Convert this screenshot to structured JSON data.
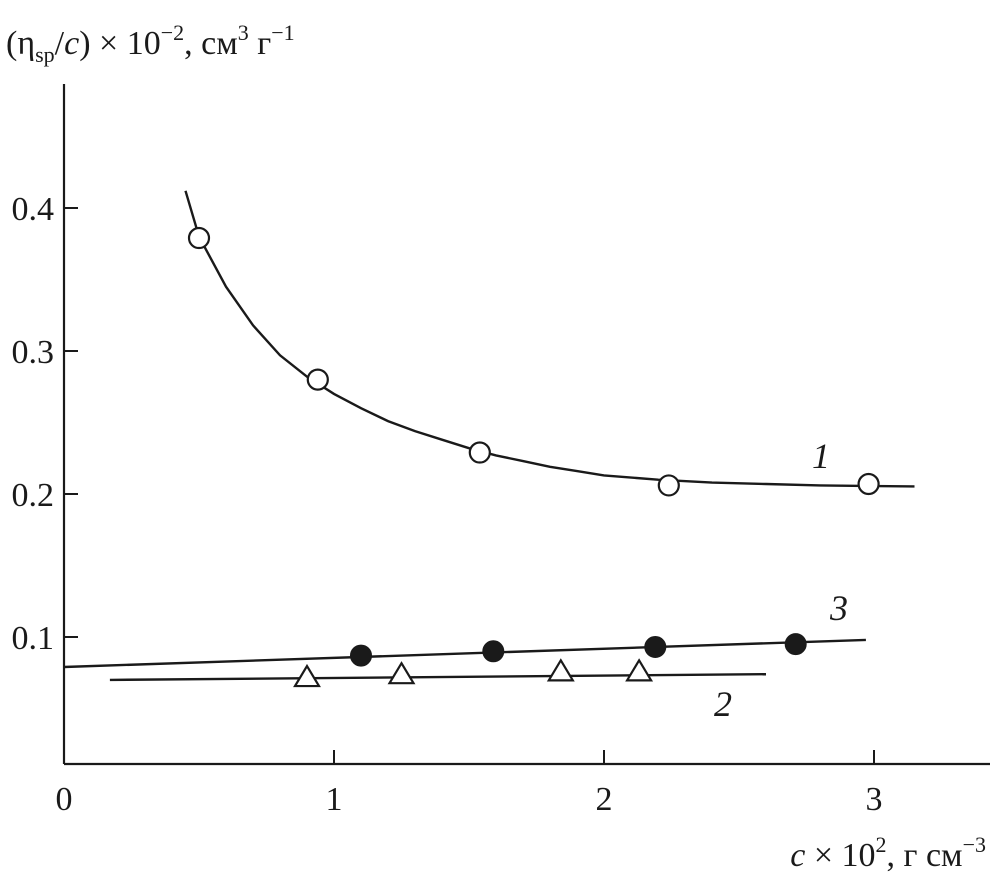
{
  "chart_data": {
    "type": "scatter",
    "ylabel": {
      "open": "(",
      "eta": "η",
      "sub": "sp",
      "slash": "/",
      "c": "c",
      "rest": ") × 10",
      "exp": "−2",
      "units": ", см",
      "units_exp": "3",
      "units2": " г",
      "units2_exp": "−1"
    },
    "xlabel": {
      "c": "c",
      "rest": " × 10",
      "exp": "2",
      "units": ", г см",
      "units_exp": "−3"
    },
    "xlim": [
      0,
      3.45
    ],
    "ylim": [
      0,
      0.48
    ],
    "xticks": [
      0,
      1,
      2,
      3
    ],
    "xtick_labels": [
      "0",
      "1",
      "2",
      "3"
    ],
    "yticks": [
      0.1,
      0.2,
      0.3,
      0.4
    ],
    "ytick_labels": [
      "0.1",
      "0.2",
      "0.3",
      "0.4"
    ],
    "grid": false,
    "series": [
      {
        "name": "1",
        "marker": "open-circle",
        "points": [
          {
            "x": 0.5,
            "y": 0.379
          },
          {
            "x": 0.94,
            "y": 0.28
          },
          {
            "x": 1.54,
            "y": 0.229
          },
          {
            "x": 2.24,
            "y": 0.206
          },
          {
            "x": 2.98,
            "y": 0.207
          }
        ],
        "curve": [
          [
            0.45,
            0.412
          ],
          [
            0.5,
            0.38
          ],
          [
            0.6,
            0.345
          ],
          [
            0.7,
            0.318
          ],
          [
            0.8,
            0.297
          ],
          [
            0.9,
            0.282
          ],
          [
            1.0,
            0.27
          ],
          [
            1.1,
            0.26
          ],
          [
            1.2,
            0.251
          ],
          [
            1.3,
            0.244
          ],
          [
            1.4,
            0.238
          ],
          [
            1.5,
            0.232
          ],
          [
            1.6,
            0.227
          ],
          [
            1.7,
            0.223
          ],
          [
            1.8,
            0.219
          ],
          [
            1.9,
            0.216
          ],
          [
            2.0,
            0.213
          ],
          [
            2.2,
            0.21
          ],
          [
            2.4,
            0.208
          ],
          [
            2.6,
            0.207
          ],
          [
            2.8,
            0.206
          ],
          [
            3.0,
            0.2055
          ],
          [
            3.15,
            0.2053
          ]
        ]
      },
      {
        "name": "2",
        "marker": "open-triangle",
        "points": [
          {
            "x": 0.9,
            "y": 0.071
          },
          {
            "x": 1.25,
            "y": 0.073
          },
          {
            "x": 1.84,
            "y": 0.075
          },
          {
            "x": 2.13,
            "y": 0.075
          }
        ],
        "curve": [
          [
            0.17,
            0.07
          ],
          [
            2.6,
            0.074
          ]
        ]
      },
      {
        "name": "3",
        "marker": "filled-circle",
        "points": [
          {
            "x": 1.1,
            "y": 0.087
          },
          {
            "x": 1.59,
            "y": 0.09
          },
          {
            "x": 2.19,
            "y": 0.093
          },
          {
            "x": 2.71,
            "y": 0.095
          }
        ],
        "curve": [
          [
            0.0,
            0.079
          ],
          [
            2.97,
            0.098
          ]
        ]
      }
    ]
  }
}
